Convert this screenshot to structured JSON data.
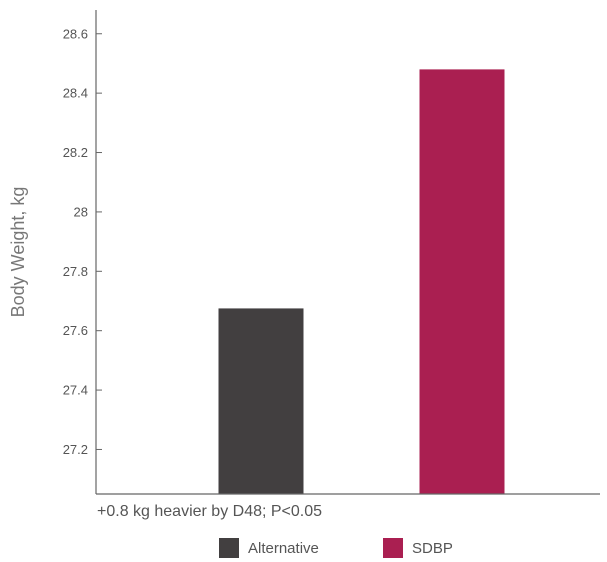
{
  "chart_data": {
    "type": "bar",
    "categories": [
      "Alternative",
      "SDBP"
    ],
    "values": [
      27.675,
      28.48
    ],
    "colors": [
      "#423f40",
      "#aa1f51"
    ],
    "ylabel": "Body Weight, kg",
    "xlabel": "",
    "ylim": [
      27.05,
      28.68
    ],
    "yticks": [
      "28.6",
      "28.4",
      "28.2",
      "28",
      "27.8",
      "27.6",
      "27.4",
      "27.2"
    ],
    "ytick_values": [
      28.6,
      28.4,
      28.2,
      28.0,
      27.8,
      27.6,
      27.4,
      27.2
    ],
    "grid": false,
    "legend_position": "bottom-center",
    "annotation": "+0.8 kg heavier by D48; P<0.05"
  },
  "legend": [
    {
      "label": "Alternative",
      "color": "#423f40"
    },
    {
      "label": "SDBP",
      "color": "#aa1f51"
    }
  ]
}
